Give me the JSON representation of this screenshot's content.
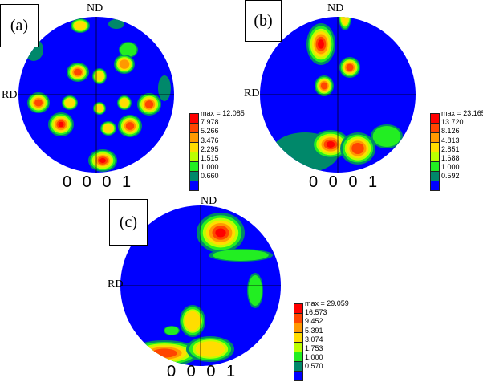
{
  "chart_data": [
    {
      "type": "heatmap",
      "panel": "(a)",
      "top_label": "ND",
      "left_label": "RD",
      "plane": "0 0 0 1",
      "legend": [
        "max = 12.085",
        "7.978",
        "5.266",
        "3.476",
        "2.295",
        "1.515",
        "1.000",
        "0.660"
      ]
    },
    {
      "type": "heatmap",
      "panel": "(b)",
      "top_label": "ND",
      "left_label": "RD",
      "plane": "0 0 0 1",
      "legend": [
        "max = 23.165",
        "13.720",
        "8.126",
        "4.813",
        "2.851",
        "1.688",
        "1.000",
        "0.592"
      ]
    },
    {
      "type": "heatmap",
      "panel": "(c)",
      "top_label": "ND",
      "left_label": "RD",
      "plane": "0 0 0 1",
      "legend": [
        "max = 29.059",
        "16.573",
        "9.452",
        "5.391",
        "3.074",
        "1.753",
        "1.000",
        "0.570"
      ]
    }
  ],
  "colors": [
    "#ff0000",
    "#ff4500",
    "#ff9900",
    "#ffdd00",
    "#bbff00",
    "#22ee22",
    "#00886a",
    "#0000ff"
  ]
}
